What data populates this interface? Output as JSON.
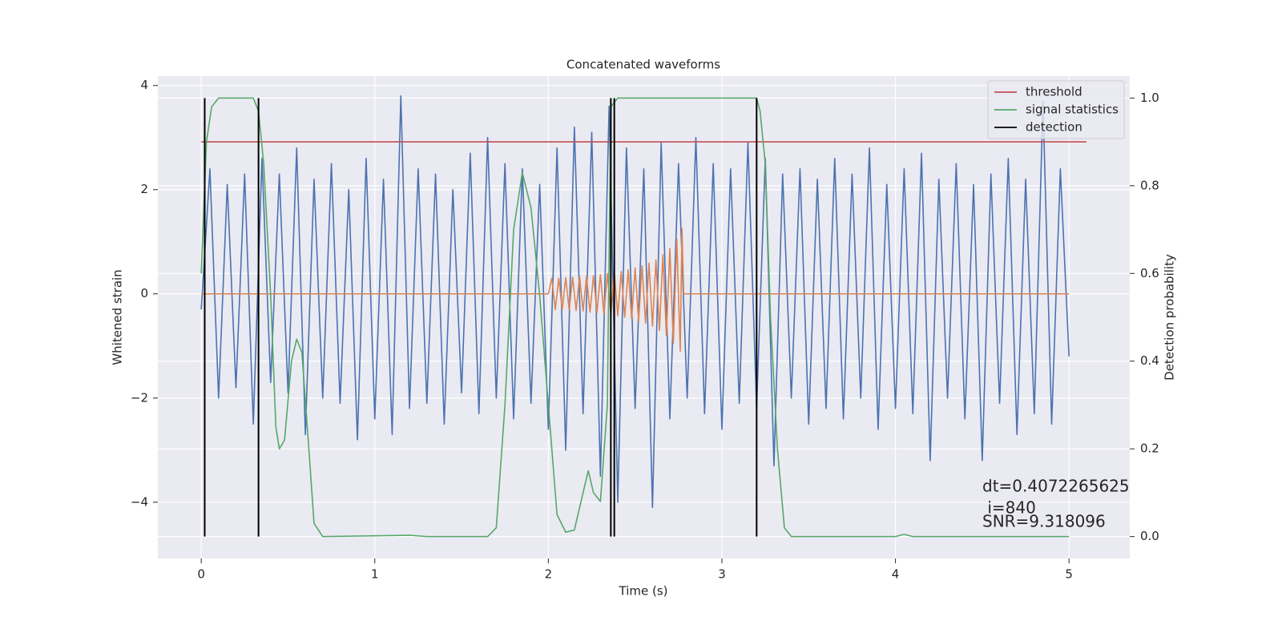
{
  "chart_data": {
    "type": "line",
    "title": "Concatenated waveforms",
    "xlabel": "Time (s)",
    "ylabel": "Whitened strain",
    "y2label": "Detection probability",
    "xlim": [
      -0.25,
      5.35
    ],
    "ylim": [
      -5.08,
      4.18
    ],
    "y2lim": [
      -0.05,
      1.05
    ],
    "xticks": [
      0,
      1,
      2,
      3,
      4,
      5
    ],
    "yticks": [
      {
        "value": -4,
        "label": "−4"
      },
      {
        "value": -2,
        "label": "−2"
      },
      0,
      2,
      4
    ],
    "y2ticks": [
      {
        "value": 0,
        "label": "0.0"
      },
      0.2,
      0.4,
      0.6,
      0.8,
      {
        "value": 1,
        "label": "1.0"
      }
    ],
    "grid": true,
    "legend": "upper right",
    "annotations": [
      "dt=0.4072265625",
      " i=840",
      "SNR=9.318096"
    ],
    "series": [
      {
        "kind": "line",
        "color": "#4c72b0",
        "x": [
          0,
          0.05,
          0.1,
          0.15,
          0.2,
          0.25,
          0.3,
          0.35,
          0.4,
          0.45,
          0.5,
          0.55,
          0.6,
          0.65,
          0.7,
          0.75,
          0.8,
          0.85,
          0.9,
          0.95,
          1,
          1.05,
          1.1,
          1.15,
          1.2,
          1.25,
          1.3,
          1.35,
          1.4,
          1.45,
          1.5,
          1.55,
          1.6,
          1.65,
          1.7,
          1.75,
          1.8,
          1.85,
          1.9,
          1.95,
          2,
          2.05,
          2.1,
          2.15,
          2.2,
          2.25,
          2.3,
          2.35,
          2.4,
          2.45,
          2.5,
          2.55,
          2.6,
          2.65,
          2.7,
          2.75,
          2.8,
          2.85,
          2.9,
          2.95,
          3,
          3.05,
          3.1,
          3.15,
          3.2,
          3.25,
          3.3,
          3.35,
          3.4,
          3.45,
          3.5,
          3.55,
          3.6,
          3.65,
          3.7,
          3.75,
          3.8,
          3.85,
          3.9,
          3.95,
          4,
          4.05,
          4.1,
          4.15,
          4.2,
          4.25,
          4.3,
          4.35,
          4.4,
          4.45,
          4.5,
          4.55,
          4.6,
          4.65,
          4.7,
          4.75,
          4.8,
          4.85,
          4.9,
          4.95,
          5
        ],
        "values": [
          -0.3,
          2.4,
          -2.0,
          2.1,
          -1.8,
          2.3,
          -2.5,
          2.6,
          -1.7,
          2.3,
          -1.9,
          2.8,
          -2.7,
          2.2,
          -2.0,
          2.5,
          -2.1,
          2.0,
          -2.8,
          2.6,
          -2.4,
          2.2,
          -2.7,
          3.8,
          -2.2,
          2.4,
          -2.1,
          2.3,
          -2.5,
          2.0,
          -1.9,
          2.7,
          -2.3,
          3.0,
          -2.0,
          2.5,
          -2.4,
          2.4,
          -2.1,
          2.1,
          -2.6,
          2.8,
          -3.0,
          3.2,
          -2.3,
          3.1,
          -3.5,
          3.6,
          -4.0,
          2.8,
          -2.2,
          2.4,
          -4.1,
          2.9,
          -2.4,
          2.5,
          -2.0,
          3.0,
          -2.3,
          2.5,
          -2.6,
          2.4,
          -2.1,
          2.9,
          -2.2,
          2.6,
          -3.3,
          2.3,
          -2.0,
          2.4,
          -2.5,
          2.2,
          -2.2,
          2.6,
          -2.4,
          2.3,
          -2.0,
          2.8,
          -2.6,
          2.1,
          -2.2,
          2.4,
          -2.3,
          2.7,
          -3.2,
          2.2,
          -2.0,
          2.5,
          -2.4,
          2.1,
          -3.2,
          2.3,
          -2.1,
          2.6,
          -2.7,
          2.2,
          -2.3,
          3.7,
          -2.5,
          2.4,
          -1.2
        ]
      },
      {
        "kind": "line",
        "color": "#dd8452",
        "x": [
          0,
          2.0,
          2.02,
          2.04,
          2.06,
          2.08,
          2.1,
          2.12,
          2.14,
          2.16,
          2.18,
          2.2,
          2.22,
          2.24,
          2.26,
          2.28,
          2.3,
          2.32,
          2.34,
          2.36,
          2.38,
          2.4,
          2.42,
          2.44,
          2.46,
          2.48,
          2.5,
          2.52,
          2.54,
          2.56,
          2.58,
          2.6,
          2.62,
          2.64,
          2.66,
          2.68,
          2.7,
          2.72,
          2.74,
          2.76,
          2.77,
          2.78,
          5.0
        ],
        "values": [
          0,
          0,
          0.3,
          -0.3,
          0.3,
          -0.3,
          0.31,
          -0.31,
          0.32,
          -0.32,
          0.33,
          -0.33,
          0.34,
          -0.35,
          0.35,
          -0.36,
          0.37,
          -0.38,
          0.39,
          -0.4,
          0.41,
          -0.42,
          0.43,
          -0.45,
          0.46,
          -0.48,
          0.5,
          -0.52,
          0.54,
          -0.56,
          0.59,
          -0.62,
          0.65,
          -0.7,
          0.75,
          -0.8,
          0.87,
          -0.95,
          1.05,
          -1.1,
          1.25,
          0,
          0
        ]
      },
      {
        "kind": "line",
        "name": "threshold",
        "color": "#c44e52",
        "axis": "y2",
        "x": [
          0,
          5.1
        ],
        "values": [
          0.9,
          0.9
        ]
      },
      {
        "kind": "line",
        "name": "signal statistics",
        "color": "#55a868",
        "axis": "y2",
        "x": [
          0,
          0.03,
          0.06,
          0.1,
          0.3,
          0.33,
          0.36,
          0.4,
          0.43,
          0.45,
          0.48,
          0.52,
          0.55,
          0.58,
          0.62,
          0.65,
          0.7,
          1.2,
          1.3,
          1.65,
          1.7,
          1.75,
          1.8,
          1.85,
          1.9,
          1.95,
          2.0,
          2.05,
          2.1,
          2.15,
          2.2,
          2.23,
          2.26,
          2.3,
          2.34,
          2.36,
          2.4,
          3.2,
          3.22,
          3.25,
          3.28,
          3.32,
          3.36,
          3.4,
          4.0,
          4.05,
          4.1,
          5.0
        ],
        "values": [
          0.6,
          0.9,
          0.98,
          1.0,
          1.0,
          0.97,
          0.85,
          0.55,
          0.25,
          0.2,
          0.22,
          0.4,
          0.45,
          0.42,
          0.2,
          0.03,
          0.0,
          0.003,
          0.0,
          0.0,
          0.02,
          0.3,
          0.7,
          0.83,
          0.75,
          0.55,
          0.3,
          0.05,
          0.01,
          0.015,
          0.1,
          0.15,
          0.1,
          0.08,
          0.3,
          0.98,
          1.0,
          1.0,
          0.97,
          0.85,
          0.5,
          0.2,
          0.02,
          0.0,
          0.0,
          0.005,
          0.0,
          0.0
        ]
      },
      {
        "kind": "vlines",
        "name": "detection",
        "color": "#000000",
        "axis": "y2",
        "x": [
          0.02,
          0.33,
          2.36,
          2.38,
          3.2
        ],
        "ymin": 0,
        "ymax": 1
      }
    ]
  }
}
